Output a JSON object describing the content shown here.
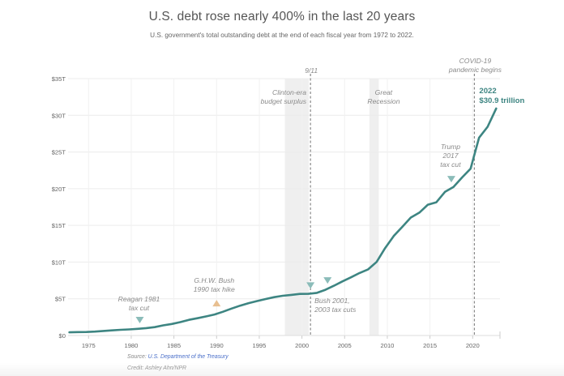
{
  "header": {
    "title": "U.S. debt rose nearly 400% in the last 20 years",
    "subtitle": "U.S. government's total outstanding debt at the end of each fiscal year from 1972 to 2022."
  },
  "footer": {
    "source_prefix": "Source: ",
    "source_link": "U.S. Department of the Treasury",
    "credit": "Credit: Ashley Ahn/NPR"
  },
  "colors": {
    "line": "#3d8582",
    "marker_teal": "#8bbcb9",
    "marker_tan": "#e8bf90",
    "shade": "#efefef",
    "grid": "#ececec",
    "annotation": "#8a8a8a"
  },
  "chart_data": {
    "type": "line",
    "title": "U.S. debt rose nearly 400% in the last 20 years",
    "subtitle": "U.S. government's total outstanding debt at the end of each fiscal year from 1972 to 2022.",
    "xlabel": "",
    "ylabel": "",
    "xlim": [
      1972.6,
      2023.2
    ],
    "ylim": [
      0,
      35
    ],
    "grid": true,
    "x_ticks": [
      1975,
      1980,
      1985,
      1990,
      1995,
      2000,
      2005,
      2010,
      2015,
      2020
    ],
    "x_tick_labels": [
      "1975",
      "1980",
      "1985",
      "1990",
      "1995",
      "2000",
      "2005",
      "2010",
      "2015",
      "2020"
    ],
    "y_ticks": [
      0,
      5,
      10,
      15,
      20,
      25,
      30,
      35
    ],
    "y_tick_labels": [
      "$0",
      "$5T",
      "$10T",
      "$15T",
      "$20T",
      "$25T",
      "$30T",
      "$35T"
    ],
    "series": [
      {
        "name": "Total outstanding debt ($ trillions)",
        "x": [
          1972,
          1973,
          1974,
          1975,
          1976,
          1977,
          1978,
          1979,
          1980,
          1981,
          1982,
          1983,
          1984,
          1985,
          1986,
          1987,
          1988,
          1989,
          1990,
          1991,
          1992,
          1993,
          1994,
          1995,
          1996,
          1997,
          1998,
          1999,
          2000,
          2001,
          2002,
          2003,
          2004,
          2005,
          2006,
          2007,
          2008,
          2009,
          2010,
          2011,
          2012,
          2013,
          2014,
          2015,
          2016,
          2017,
          2018,
          2019,
          2020,
          2021,
          2022
        ],
        "values": [
          0.43,
          0.46,
          0.48,
          0.53,
          0.62,
          0.7,
          0.77,
          0.83,
          0.91,
          1.0,
          1.14,
          1.38,
          1.57,
          1.82,
          2.13,
          2.35,
          2.6,
          2.86,
          3.23,
          3.67,
          4.06,
          4.41,
          4.69,
          4.97,
          5.22,
          5.41,
          5.53,
          5.66,
          5.67,
          5.81,
          6.23,
          6.78,
          7.38,
          7.93,
          8.51,
          9.01,
          10.02,
          11.91,
          13.56,
          14.79,
          16.07,
          16.74,
          17.82,
          18.15,
          19.57,
          20.24,
          21.52,
          22.72,
          26.95,
          28.43,
          30.93
        ]
      }
    ],
    "shaded_periods": [
      {
        "name": "clinton-surplus",
        "label": [
          "Clinton-era",
          "budget surplus"
        ],
        "start": 1998.0,
        "end": 2000.8
      },
      {
        "name": "great-recession",
        "label": [
          "Great",
          "Recession"
        ],
        "start": 2007.9,
        "end": 2009.0
      }
    ],
    "event_lines": [
      {
        "name": "9-11",
        "label": [
          "9/11"
        ],
        "x": 2001.0
      },
      {
        "name": "covid-19",
        "label": [
          "COVID-19",
          "pandemic begins"
        ],
        "x": 2020.2
      }
    ],
    "markers": [
      {
        "name": "reagan-tax-cut",
        "x": 1981,
        "y": 2.1,
        "direction": "down",
        "color": "teal",
        "label": [
          "Reagan 1981",
          "tax cut"
        ]
      },
      {
        "name": "bush-tax-hike",
        "x": 1990,
        "y": 4.4,
        "direction": "up",
        "color": "tan",
        "label": [
          "G.H.W. Bush",
          "1990 tax hike"
        ]
      },
      {
        "name": "bush-2001-tax-cut",
        "x": 2001,
        "y": 6.8,
        "direction": "down",
        "color": "teal",
        "label": [
          "Bush 2001,",
          "2003 tax cuts"
        ]
      },
      {
        "name": "bush-2003-tax-cut",
        "x": 2003,
        "y": 7.5,
        "direction": "down",
        "color": "teal",
        "label": []
      },
      {
        "name": "trump-tax-cut",
        "x": 2017.5,
        "y": 21.3,
        "direction": "down",
        "color": "teal",
        "label": [
          "Trump",
          "2017",
          "tax cut"
        ]
      }
    ],
    "end_label": [
      "2022",
      "$30.9 trillion"
    ]
  }
}
